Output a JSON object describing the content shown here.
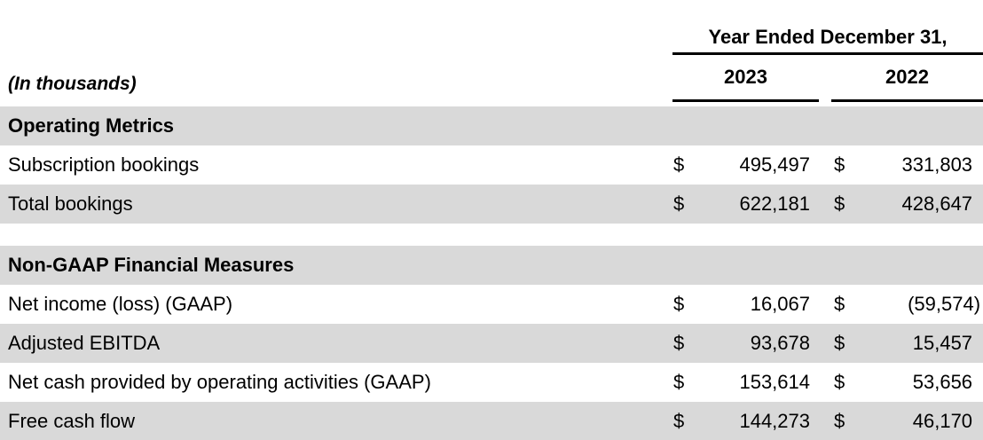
{
  "table": {
    "units_label": "(In thousands)",
    "period_header": "Year Ended December 31,",
    "columns": [
      "2023",
      "2022"
    ],
    "currency": "$",
    "colors": {
      "row_shade": "#d9d9d9",
      "rule_line": "#000000",
      "text": "#000000"
    },
    "sections": [
      {
        "title": "Operating Metrics",
        "rows": [
          {
            "label": "Subscription bookings",
            "values": [
              "495,497",
              "331,803"
            ]
          },
          {
            "label": "Total bookings",
            "values": [
              "622,181",
              "428,647"
            ]
          }
        ]
      },
      {
        "title": "Non-GAAP Financial Measures",
        "rows": [
          {
            "label": "Net income (loss) (GAAP)",
            "values": [
              "16,067",
              "(59,574)"
            ]
          },
          {
            "label": "Adjusted EBITDA",
            "values": [
              "93,678",
              "15,457"
            ]
          },
          {
            "label": "Net cash provided by operating activities (GAAP)",
            "values": [
              "153,614",
              "53,656"
            ]
          },
          {
            "label": "Free cash flow",
            "values": [
              "144,273",
              "46,170"
            ]
          }
        ]
      }
    ]
  }
}
